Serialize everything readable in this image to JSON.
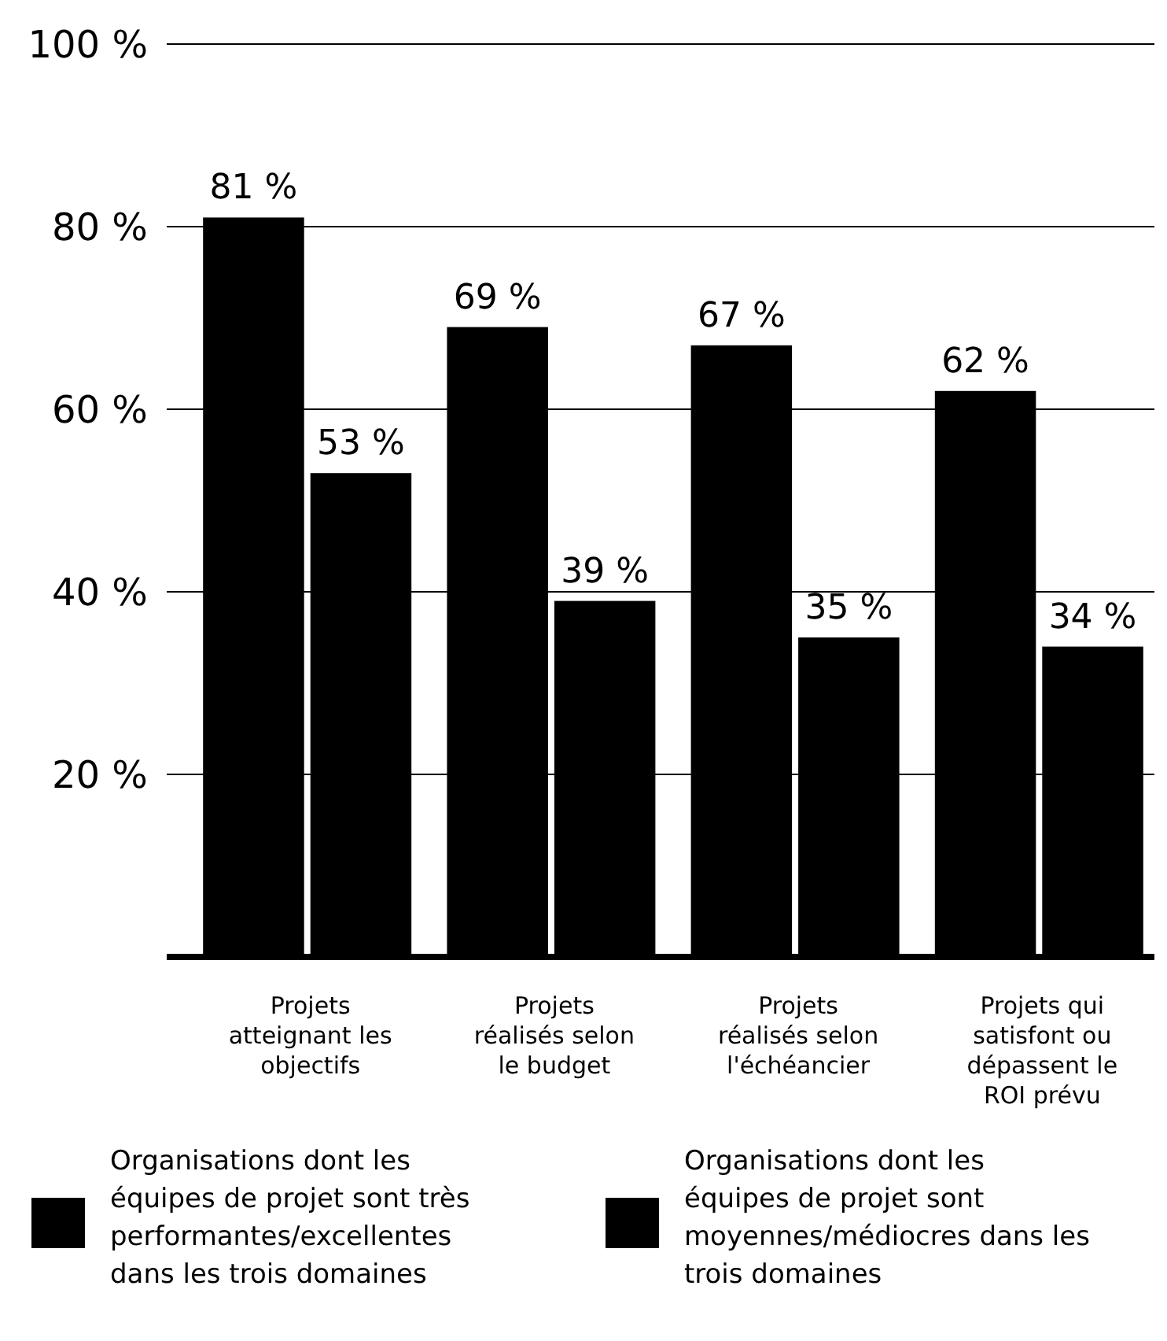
{
  "chart_data": {
    "type": "bar",
    "categories": [
      "Projets atteignant les objectifs",
      "Projets réalisés selon le budget",
      "Projets réalisés selon l'échéancier",
      "Projets qui satisfont ou dépassent le ROI prévu"
    ],
    "series": [
      {
        "name": "Organisations dont les équipes de projet sont très performantes/excellentes dans les trois domaines",
        "color": "#000000",
        "values": [
          81,
          69,
          67,
          62
        ],
        "value_labels": [
          "81 %",
          "69 %",
          "67 %",
          "62 %"
        ]
      },
      {
        "name": "Organisations dont les équipes de projet sont moyennes/médiocres dans les trois domaines",
        "color": "#000000",
        "values": [
          53,
          39,
          35,
          34
        ],
        "value_labels": [
          "53 %",
          "39 %",
          "35 %",
          "34 %"
        ]
      }
    ],
    "ylim": [
      0,
      100
    ],
    "yticks": [
      {
        "value": 20,
        "label": "20 %"
      },
      {
        "value": 40,
        "label": "40 %"
      },
      {
        "value": 60,
        "label": "60 %"
      },
      {
        "value": 80,
        "label": "80 %"
      },
      {
        "value": 100,
        "label": "100 %"
      }
    ],
    "grid": "y",
    "legend": "bottom"
  }
}
